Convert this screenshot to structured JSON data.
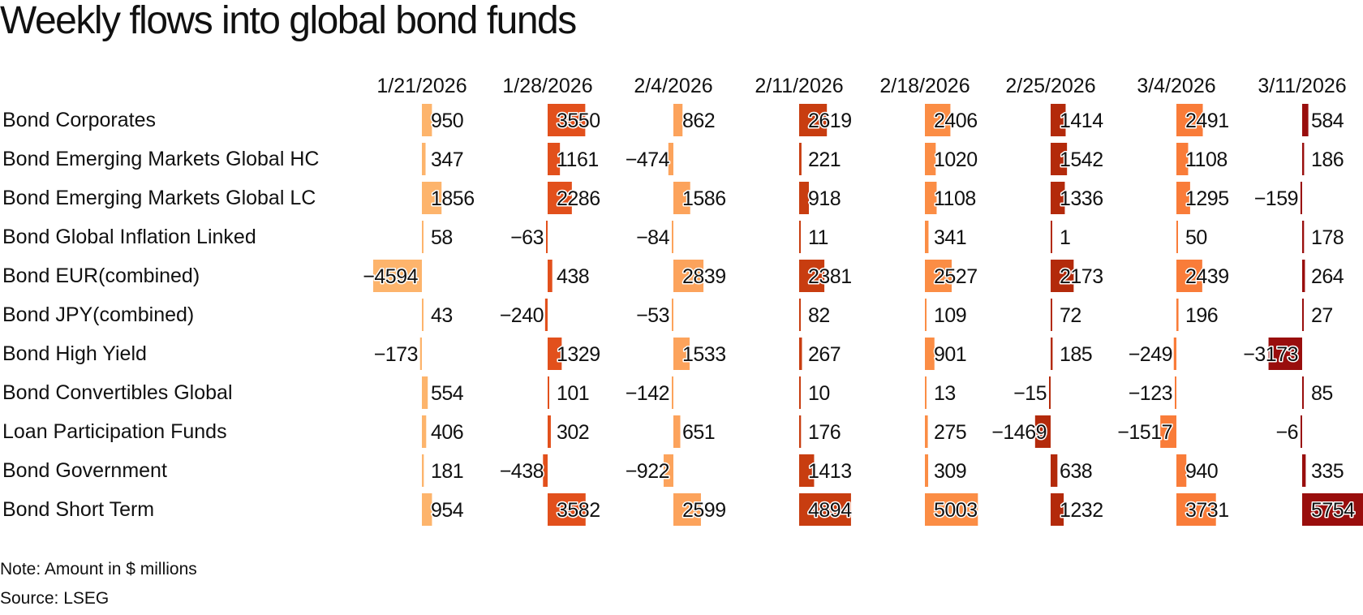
{
  "title": "Weekly flows into global bond funds",
  "note": "Note: Amount in $ millions",
  "source": "Source: LSEG",
  "chart_data": {
    "type": "table",
    "title": "Weekly flows into global bond funds",
    "unit": "$ millions",
    "columns": [
      "1/21/2026",
      "1/28/2026",
      "2/4/2026",
      "2/11/2026",
      "2/18/2026",
      "2/25/2026",
      "3/4/2026",
      "3/11/2026"
    ],
    "column_colors": [
      "#fdb46c",
      "#e2501c",
      "#fca35c",
      "#c83d10",
      "#fb8d45",
      "#b32a0b",
      "#f97c39",
      "#990e0d"
    ],
    "rows": [
      {
        "name": "Bond Corporates",
        "values": [
          950,
          3550,
          862,
          2619,
          2406,
          1414,
          2491,
          584
        ]
      },
      {
        "name": "Bond Emerging Markets Global HC",
        "values": [
          347,
          1161,
          -474,
          221,
          1020,
          1542,
          1108,
          186
        ]
      },
      {
        "name": "Bond Emerging Markets Global LC",
        "values": [
          1856,
          2286,
          1586,
          918,
          1108,
          1336,
          1295,
          -159
        ]
      },
      {
        "name": "Bond Global Inflation Linked",
        "values": [
          58,
          -63,
          -84,
          11,
          341,
          1,
          50,
          178
        ]
      },
      {
        "name": "Bond EUR(combined)",
        "values": [
          -4594,
          438,
          2839,
          2381,
          2527,
          2173,
          2439,
          264
        ]
      },
      {
        "name": "Bond JPY(combined)",
        "values": [
          43,
          -240,
          -53,
          82,
          109,
          72,
          196,
          27
        ]
      },
      {
        "name": "Bond High Yield",
        "values": [
          -173,
          1329,
          1533,
          267,
          901,
          185,
          -249,
          -3173
        ]
      },
      {
        "name": "Bond Convertibles Global",
        "values": [
          554,
          101,
          -142,
          10,
          13,
          -15,
          -123,
          85
        ]
      },
      {
        "name": "Loan Participation Funds",
        "values": [
          406,
          302,
          651,
          176,
          275,
          -1469,
          -1517,
          -6
        ]
      },
      {
        "name": "Bond Government",
        "values": [
          181,
          -438,
          -922,
          1413,
          309,
          638,
          940,
          335
        ]
      },
      {
        "name": "Bond Short Term",
        "values": [
          954,
          3582,
          2599,
          4894,
          5003,
          1232,
          3731,
          5754
        ]
      }
    ]
  }
}
